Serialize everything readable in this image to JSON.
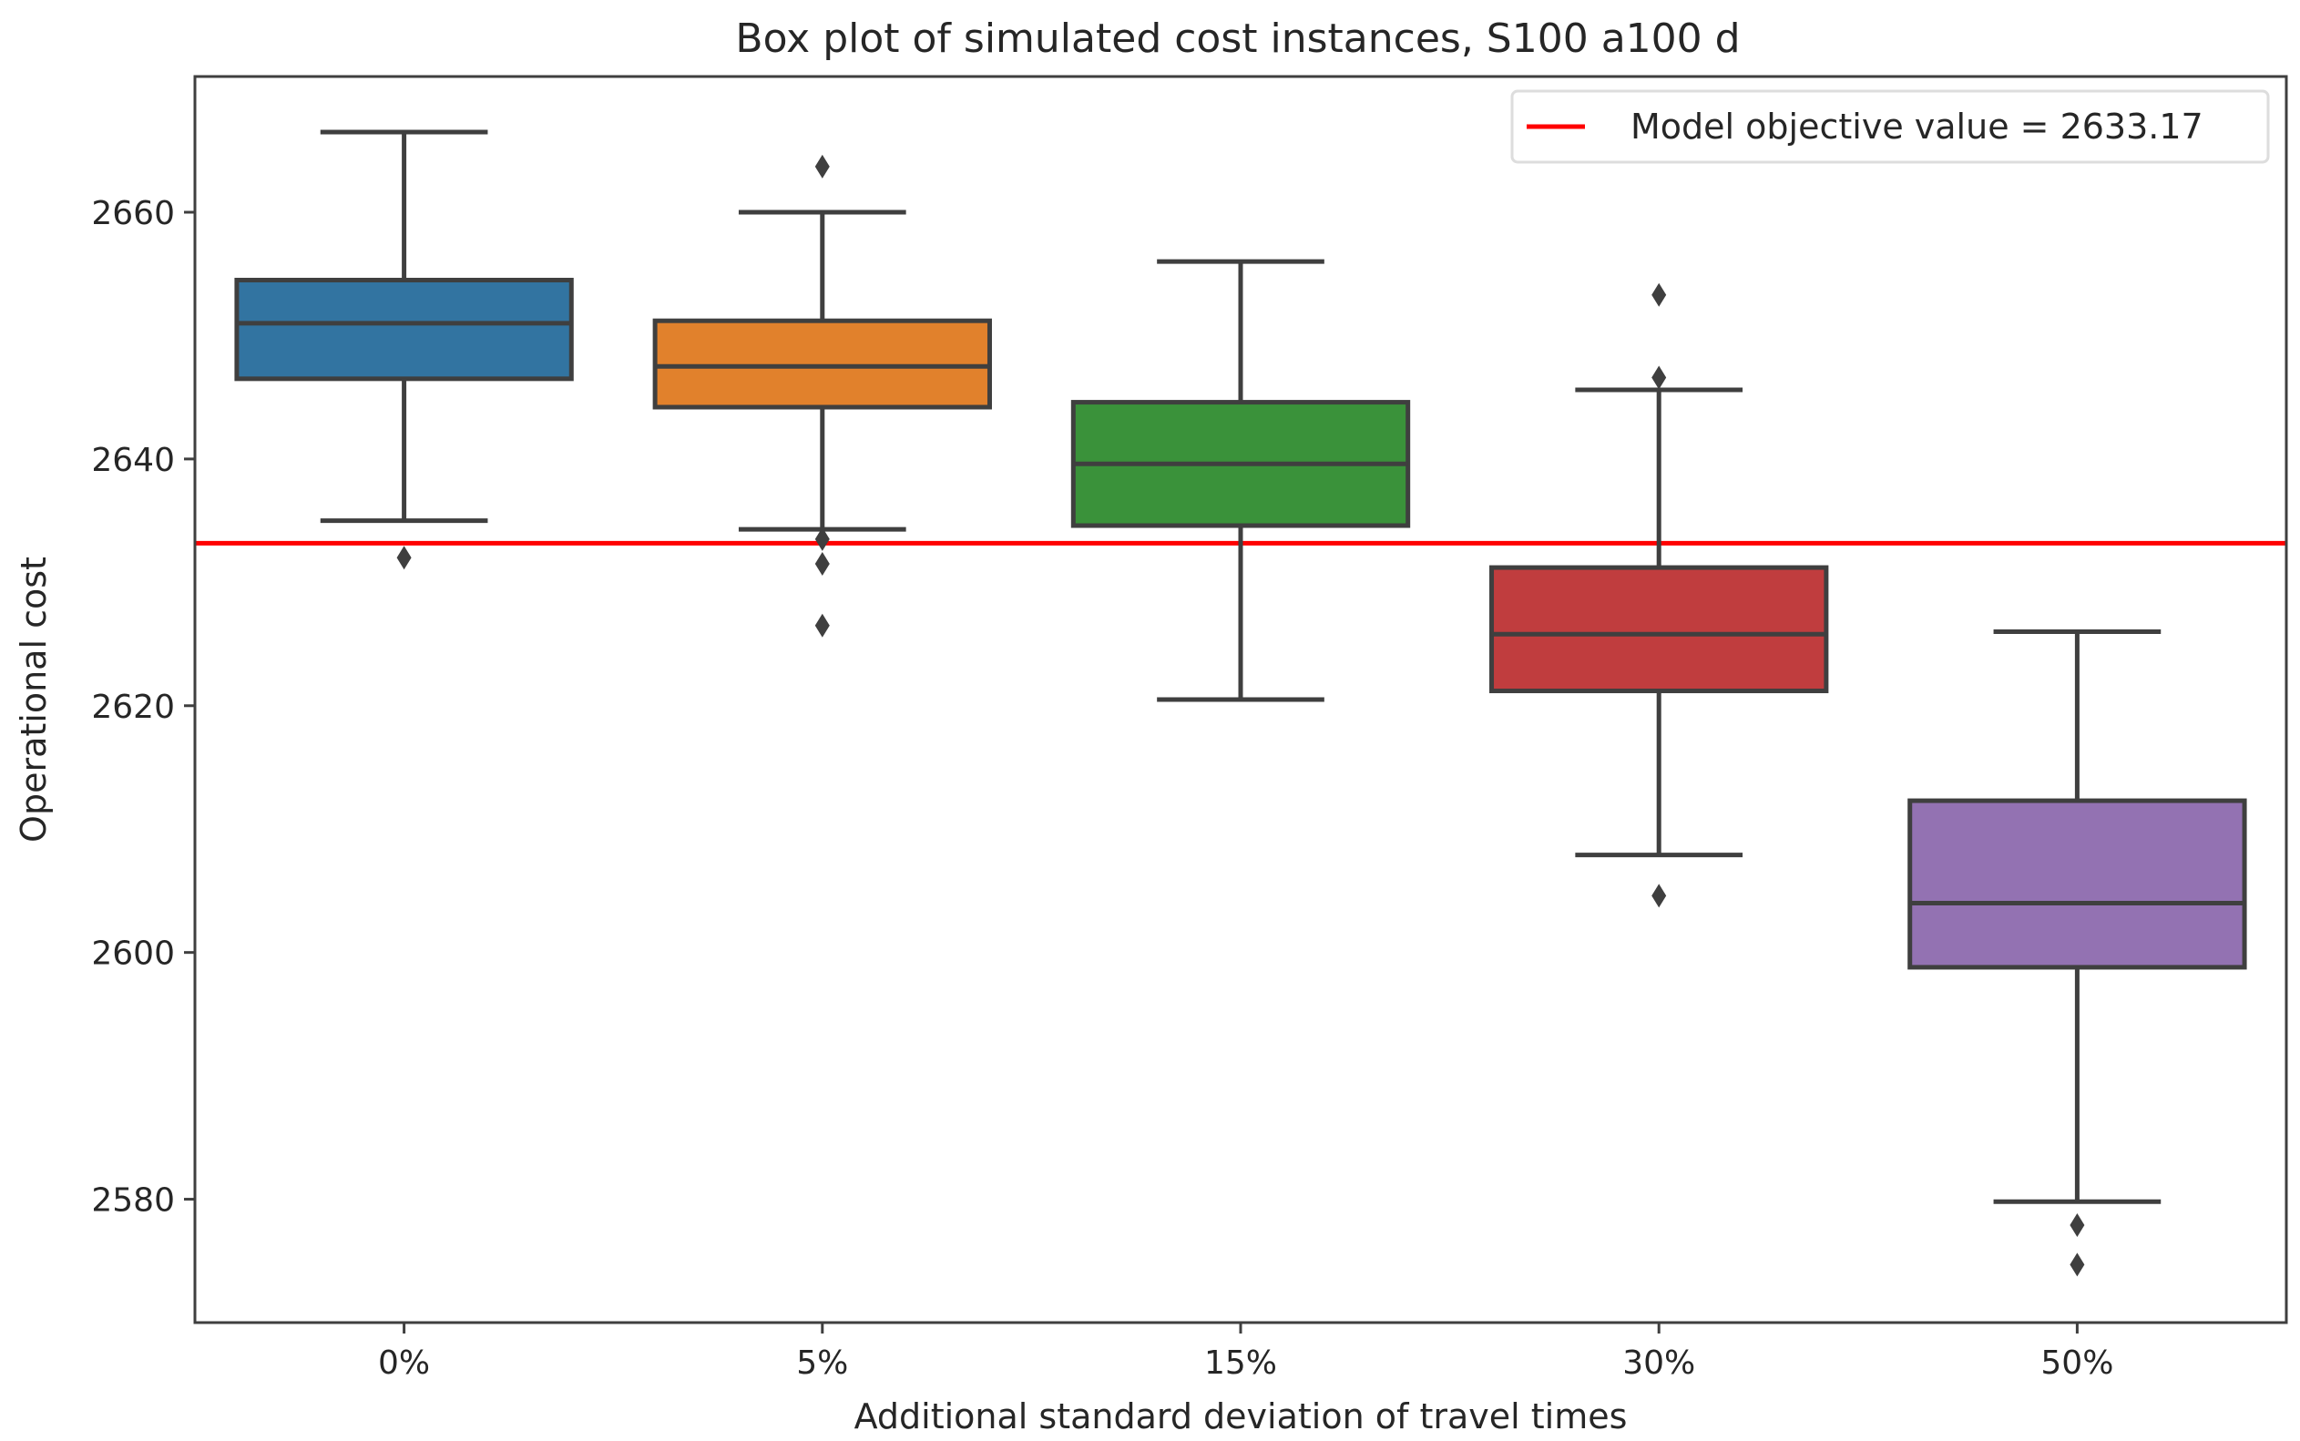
{
  "chart_data": {
    "type": "box",
    "title": "Box plot of simulated cost instances, S100 a100 d",
    "xlabel": "Additional standard deviation of travel times",
    "ylabel": "Operational cost",
    "ylim": [
      2570,
      2671
    ],
    "yticks": [
      2580,
      2600,
      2620,
      2640,
      2660
    ],
    "grid": false,
    "legend_position": "top-right",
    "categories": [
      "0%",
      "5%",
      "15%",
      "30%",
      "50%"
    ],
    "boxes": [
      {
        "label": "0%",
        "color": "#3274a1",
        "whisker_low": 2635.0,
        "q1": 2646.5,
        "median": 2651.0,
        "q3": 2654.5,
        "whisker_high": 2666.5,
        "outliers": [
          2632.0
        ]
      },
      {
        "label": "5%",
        "color": "#e1812c",
        "whisker_low": 2634.3,
        "q1": 2644.2,
        "median": 2647.5,
        "q3": 2651.2,
        "whisker_high": 2660.0,
        "outliers": [
          2663.7,
          2633.5,
          2631.5,
          2626.5
        ]
      },
      {
        "label": "15%",
        "color": "#3a923a",
        "whisker_low": 2620.5,
        "q1": 2634.6,
        "median": 2639.6,
        "q3": 2644.6,
        "whisker_high": 2656.0,
        "outliers": []
      },
      {
        "label": "30%",
        "color": "#c03d3e",
        "whisker_low": 2607.9,
        "q1": 2621.2,
        "median": 2625.8,
        "q3": 2631.2,
        "whisker_high": 2645.6,
        "outliers": [
          2653.3,
          2646.6,
          2604.6
        ]
      },
      {
        "label": "50%",
        "color": "#9372b2",
        "whisker_low": 2579.8,
        "q1": 2598.8,
        "median": 2604.0,
        "q3": 2612.3,
        "whisker_high": 2626.0,
        "outliers": [
          2577.9,
          2574.7
        ]
      }
    ],
    "reference_line": {
      "value": 2633.17,
      "color": "#ff0000",
      "label": "Model objective value = 2633.17"
    },
    "colors": {
      "box_edge": "#3f3f3f",
      "axis": "#3f3f3f",
      "text": "#262626"
    }
  }
}
